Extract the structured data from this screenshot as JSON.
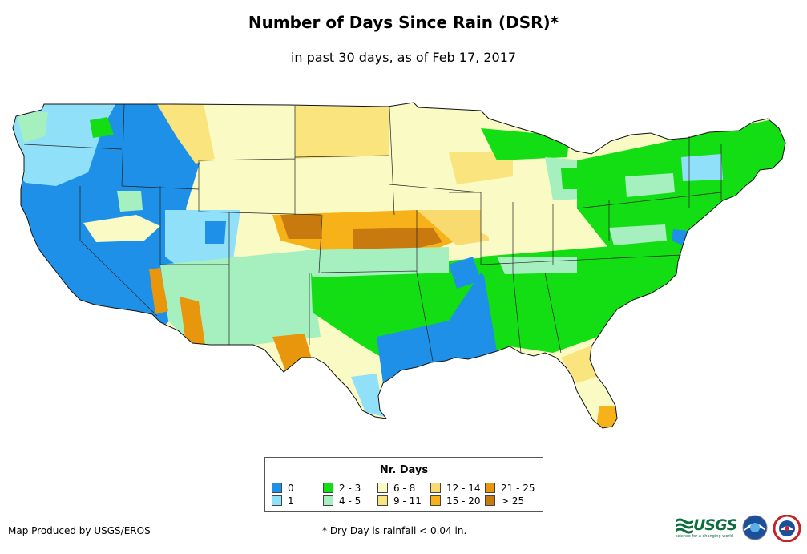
{
  "header": {
    "title": "Number of Days Since Rain (DSR)*",
    "subtitle": "in past 30 days, as of Feb 17, 2017"
  },
  "legend": {
    "title": "Nr. Days",
    "items": [
      {
        "label": "0",
        "color": "#1e90e8"
      },
      {
        "label": "1",
        "color": "#8fe0f8"
      },
      {
        "label": "2 - 3",
        "color": "#13dd13"
      },
      {
        "label": "4 - 5",
        "color": "#a6f0c0"
      },
      {
        "label": "6 - 8",
        "color": "#fafac4"
      },
      {
        "label": "9 - 11",
        "color": "#fae47e"
      },
      {
        "label": "12 - 14",
        "color": "#f8da6e"
      },
      {
        "label": "15 - 20",
        "color": "#f7b21a"
      },
      {
        "label": "21 - 25",
        "color": "#e8960c"
      },
      {
        "label": "> 25",
        "color": "#c87a0e"
      }
    ]
  },
  "footer": {
    "credit": "Map Produced by USGS/EROS",
    "footnote": "* Dry Day is rainfall < 0.04 in.",
    "usgs_logo_text": "USGS",
    "usgs_tagline": "science for a changing world",
    "logo_icons": [
      "usgs-logo-icon",
      "noaa-logo-icon",
      "nws-logo-icon"
    ]
  }
}
